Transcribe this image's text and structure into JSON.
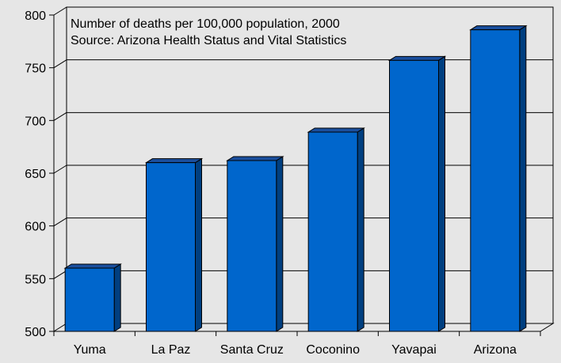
{
  "chart_data": {
    "type": "bar",
    "title": "Number of deaths per 100,000 population, 2000",
    "subtitle": "Source: Arizona Health Status and Vital Statistics",
    "categories": [
      "Yuma",
      "La Paz",
      "Santa Cruz",
      "Coconino",
      "Yavapai",
      "Arizona"
    ],
    "values": [
      560,
      660,
      662,
      689,
      757,
      786
    ],
    "ylim": [
      500,
      800
    ],
    "yticks": [
      "500",
      "550",
      "600",
      "650",
      "700",
      "750",
      "800"
    ],
    "grid": true,
    "bar_color": "#0066cc",
    "bar_side_color": "#003f80",
    "bar_top_color": "#1a4f9e"
  }
}
